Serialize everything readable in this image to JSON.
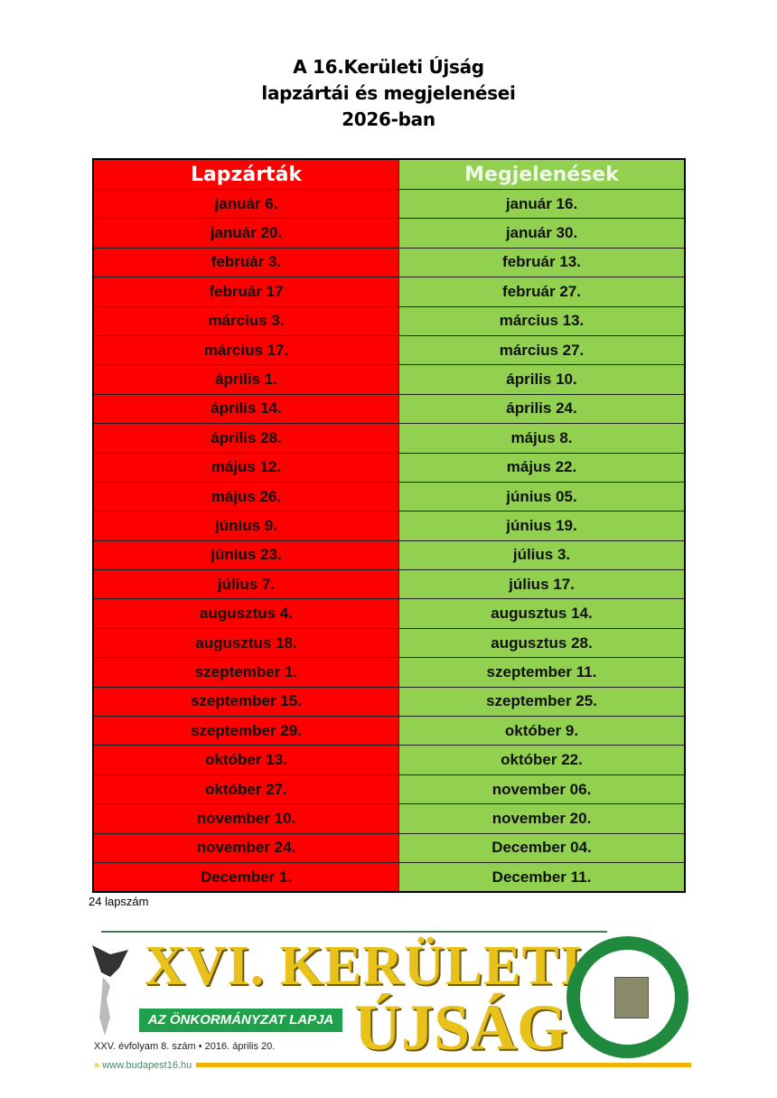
{
  "title": {
    "line1": "A 16.Kerületi Újság",
    "line2": "lapzártái és megjelenései",
    "line3": "2026-ban"
  },
  "table": {
    "headers": [
      "Lapzárták",
      "Megjelenések"
    ],
    "rows": [
      [
        "január 6.",
        "január 16."
      ],
      [
        "január 20.",
        "január 30."
      ],
      [
        "február 3.",
        "február 13."
      ],
      [
        "február 17",
        "február 27."
      ],
      [
        "március 3.",
        "március 13."
      ],
      [
        "március 17.",
        "március 27."
      ],
      [
        "április 1.",
        "április 10."
      ],
      [
        "április 14.",
        "április 24."
      ],
      [
        "április 28.",
        "május 8."
      ],
      [
        "május 12.",
        "május 22."
      ],
      [
        "május 26.",
        "június 05."
      ],
      [
        "június 9.",
        "június 19."
      ],
      [
        "június 23.",
        "július 3."
      ],
      [
        "július 7.",
        "július 17."
      ],
      [
        "augusztus 4.",
        "augusztus 14."
      ],
      [
        "augusztus 18.",
        "augusztus 28."
      ],
      [
        "szeptember 1.",
        "szeptember 11."
      ],
      [
        "szeptember 15.",
        "szeptember 25."
      ],
      [
        "szeptember 29.",
        "október 9."
      ],
      [
        "október 13.",
        "október 22."
      ],
      [
        "október 27.",
        "november 06."
      ],
      [
        "november 10.",
        "november 20."
      ],
      [
        "november 24.",
        "December 04."
      ],
      [
        "December 1.",
        "December 11."
      ]
    ]
  },
  "note": "24 lapszám",
  "logo": {
    "title_line1": "XVI. KERÜLETI",
    "title_line2": "ÚJSÁG",
    "subtitle": "AZ ÖNKORMÁNYZAT LAPJA",
    "issue": "XXV. évfolyam 8. szám • 2016. április 20.",
    "website": "www.budapest16.hu",
    "colors": {
      "red": "#ff0000",
      "green": "#92d050",
      "gold": "#e8c21a",
      "seal": "#1f8a3e"
    }
  }
}
